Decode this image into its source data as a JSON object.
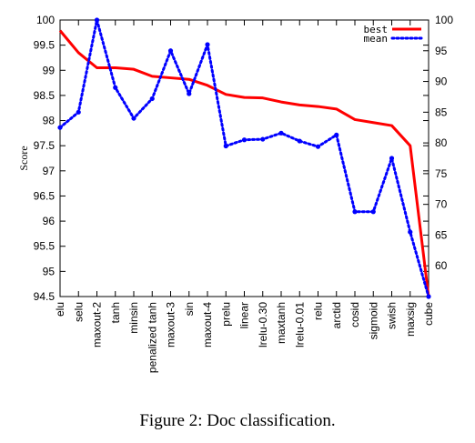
{
  "caption": "Figure 2: Doc classification.",
  "chart_data": {
    "type": "line",
    "ylabel": "Score",
    "categories": [
      "elu",
      "selu",
      "maxout-2",
      "tanh",
      "minsin",
      "penalized tanh",
      "maxout-3",
      "sin",
      "maxout-4",
      "prelu",
      "linear",
      "lrelu-0.30",
      "maxtanh",
      "lrelu-0.01",
      "relu",
      "arctid",
      "cosid",
      "sigmoid",
      "swish",
      "maxsig",
      "cube"
    ],
    "left_axis": {
      "ylim": [
        94.5,
        100
      ],
      "ticks": [
        "94.5",
        "95",
        "95.5",
        "96",
        "96.5",
        "97",
        "97.5",
        "98",
        "98.5",
        "99",
        "99.5",
        "100"
      ]
    },
    "right_axis": {
      "ylim": [
        55,
        100
      ],
      "ticks": [
        "60",
        "65",
        "70",
        "75",
        "80",
        "85",
        "90",
        "95",
        "100"
      ]
    },
    "legend_position": "top-right",
    "grid": false,
    "series": [
      {
        "name": "best",
        "axis": "left",
        "color": "#ff0000",
        "style": "solid",
        "values": [
          99.79,
          99.35,
          99.05,
          99.05,
          99.02,
          98.88,
          98.85,
          98.82,
          98.7,
          98.52,
          98.46,
          98.45,
          98.37,
          98.31,
          98.28,
          98.23,
          98.02,
          97.96,
          97.9,
          97.5,
          94.5
        ]
      },
      {
        "name": "mean",
        "axis": "right",
        "color": "#0000ff",
        "style": "dotted",
        "values": [
          82.5,
          85.0,
          100.0,
          89.0,
          84.0,
          87.2,
          95.0,
          88.0,
          96.0,
          79.5,
          80.5,
          80.6,
          81.6,
          80.3,
          79.4,
          81.3,
          68.8,
          68.8,
          77.5,
          65.5,
          55.0
        ]
      }
    ]
  }
}
